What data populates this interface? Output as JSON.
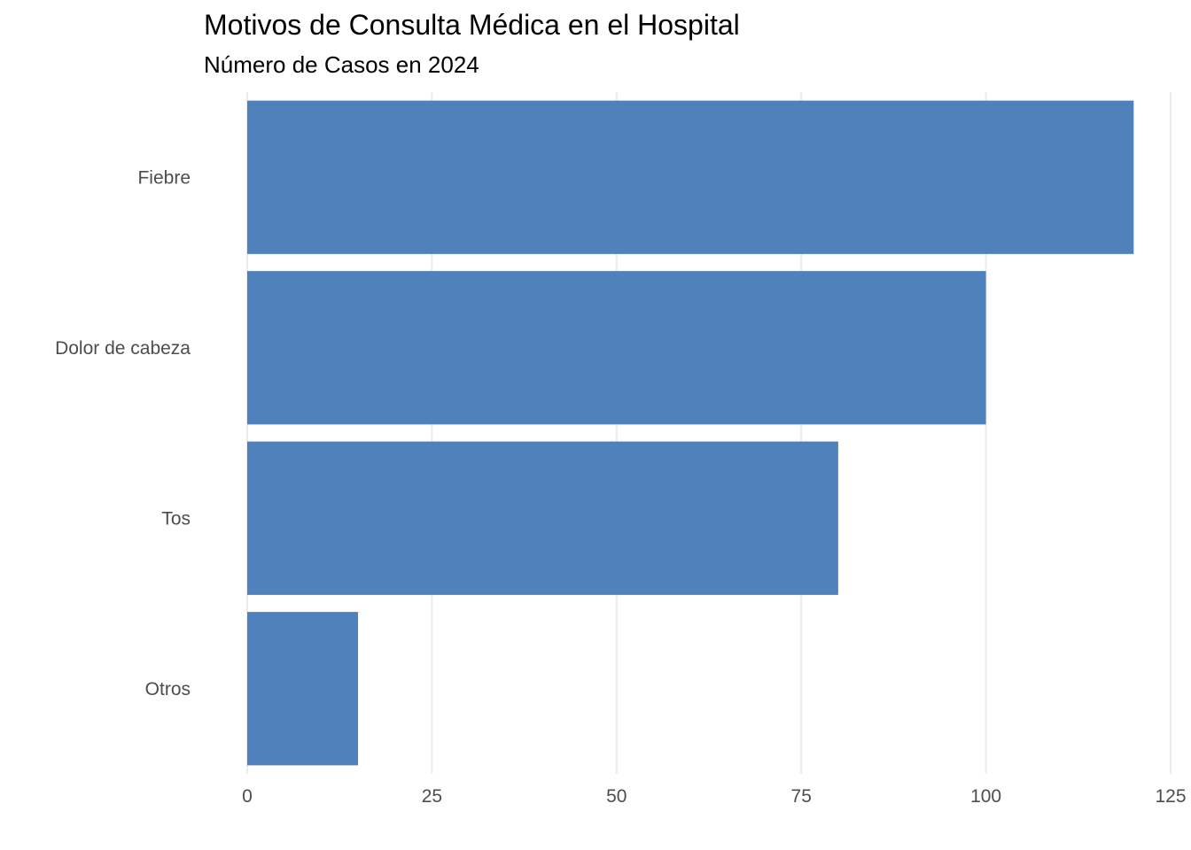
{
  "chart_data": {
    "type": "bar",
    "orientation": "horizontal",
    "title": "Motivos de Consulta Médica en el Hospital",
    "subtitle": "Número de Casos en 2024",
    "xlabel": "",
    "ylabel": "",
    "categories": [
      "Fiebre",
      "Dolor de cabeza",
      "Tos",
      "Otros"
    ],
    "values": [
      120,
      100,
      80,
      15
    ],
    "xlim": [
      0,
      125
    ],
    "xticks": [
      0,
      25,
      50,
      75,
      100,
      125
    ],
    "grid": true,
    "bar_color": "#4F81BD",
    "grid_color": "#EBEBEB"
  }
}
